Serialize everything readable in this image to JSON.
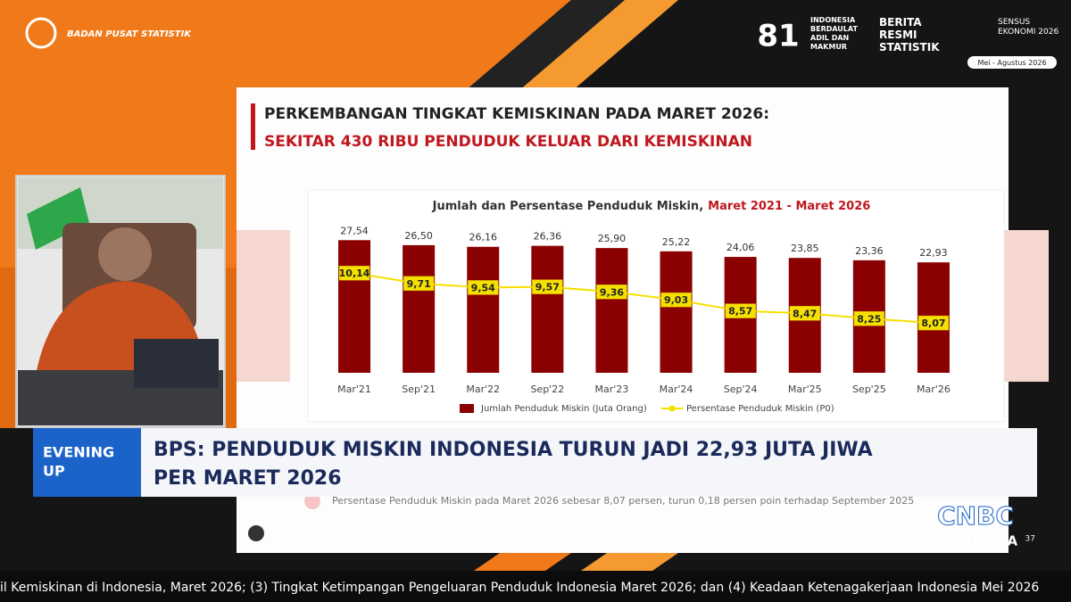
{
  "broadcast": {
    "org": "BADAN PUSAT STATISTIK",
    "logos": [
      "81",
      "INDONESIA BERDAULAT ADIL DAN MAKMUR",
      "BERITA RESMI STATISTIK",
      "SENSUS EKONOMI 2026"
    ],
    "period": "Mei - Agustus 2026",
    "program": [
      "EVENING",
      "UP"
    ],
    "headline": [
      "BPS: PENDUDUK MISKIN INDONESIA TURUN JADI 22,93 JUTA JIWA",
      "PER MARET 2026"
    ],
    "channel": [
      "CNBC",
      "INDONESIA"
    ],
    "ticker": "il Kemiskinan di Indonesia, Maret 2026; (3) Tingkat Ketimpangan Pengeluaran Penduduk Indonesia Maret 2026; dan (4) Keadaan Ketenagakerjaan Indonesia Mei 2026"
  },
  "slide": {
    "title": "PERKEMBANGAN TINGKAT KEMISKINAN PADA MARET 2026:",
    "subtitle": "SEKITAR 430 RIBU PENDUDUK KELUAR DARI KEMISKINAN",
    "note": "Persentase Penduduk Miskin pada Maret 2026 sebesar 8,07 persen, turun 0,18 persen poin terhadap September 2025",
    "page": "37"
  },
  "chart_data": {
    "type": "bar-line",
    "title": "Jumlah dan Persentase Penduduk Miskin,",
    "title_highlight": "Maret 2021 - Maret 2026",
    "categories": [
      "Mar'21",
      "Sep'21",
      "Mar'22",
      "Sep'22",
      "Mar'23",
      "Mar'24",
      "Sep'24",
      "Mar'25",
      "Sep'25",
      "Mar'26"
    ],
    "series": [
      {
        "name": "Jumlah Penduduk Miskin (Juta Orang)",
        "color": "#8b0000",
        "type": "bar",
        "values": [
          27.54,
          26.5,
          26.16,
          26.36,
          25.9,
          25.22,
          24.06,
          23.85,
          23.36,
          22.93
        ],
        "value_labels": [
          "27,54",
          "26,50",
          "26,16",
          "26,36",
          "25,90",
          "25,22",
          "24,06",
          "23,85",
          "23,36",
          "22,93"
        ]
      },
      {
        "name": "Persentase Penduduk Miskin (P0)",
        "color": "#f5e000",
        "type": "line",
        "axis": "y2",
        "values": [
          10.14,
          9.71,
          9.54,
          9.57,
          9.36,
          9.03,
          8.57,
          8.47,
          8.25,
          8.07
        ],
        "value_labels": [
          "10,14",
          "9,71",
          "9,54",
          "9,57",
          "9,36",
          "9,03",
          "8,57",
          "8,47",
          "8,25",
          "8,07"
        ]
      }
    ],
    "ylim": [
      0,
      30
    ],
    "y2lim": [
      6,
      12
    ],
    "legend": "bottom"
  }
}
